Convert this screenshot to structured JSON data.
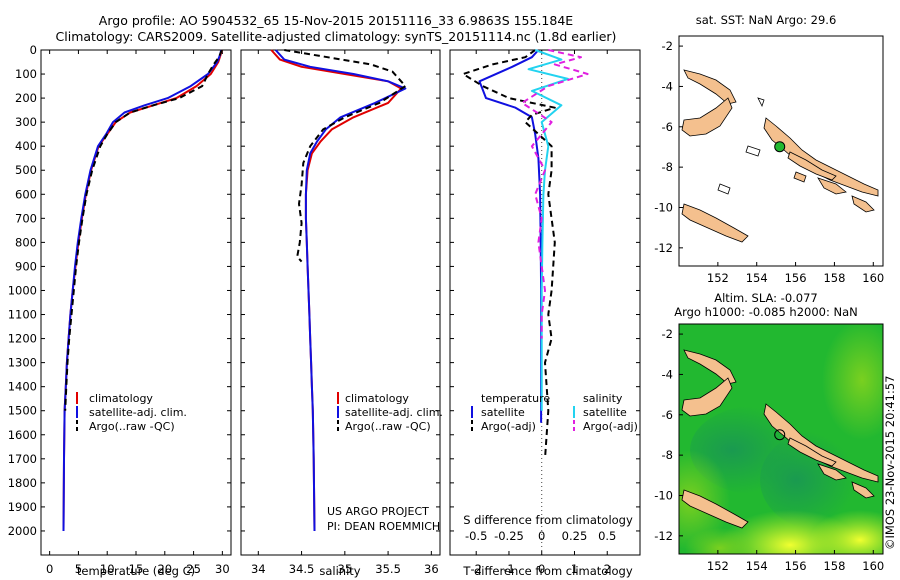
{
  "header": {
    "title_line1": "Argo profile: AO 5904532_65 15-Nov-2015 20151116_33 6.9863S 155.184E",
    "title_line2": "Climatology: CARS2009. Satellite-adjusted climatology: synTS_20151114.nc (1.8d earlier)"
  },
  "colors": {
    "climatology": "#e00000",
    "satellite": "#1010e0",
    "argo": "#000000",
    "salinity_satellite": "#22d3f0",
    "salinity_argo": "#e020e0",
    "land": "#f4c08e",
    "ocean_field": "#22b830"
  },
  "chart_data": [
    {
      "id": "temperature",
      "type": "line",
      "xlabel": "temperature (deg C)",
      "ylabel": "",
      "xlim": [
        -1.5,
        31.5
      ],
      "ylim": [
        2100,
        0
      ],
      "xticks": [
        0,
        5,
        10,
        15,
        20,
        25,
        30
      ],
      "yticks": [
        0,
        100,
        200,
        300,
        400,
        500,
        600,
        700,
        800,
        900,
        1000,
        1100,
        1200,
        1300,
        1400,
        1500,
        1600,
        1700,
        1800,
        1900,
        2000
      ],
      "legend": [
        "climatology",
        "satellite-adj. clim.",
        "Argo(..raw -QC)"
      ],
      "series": [
        {
          "name": "climatology",
          "color": "#e00000",
          "dashed": false,
          "x": [
            29.9,
            29.7,
            29.3,
            28.0,
            25.5,
            22.0,
            18.0,
            14.0,
            11.5,
            10.0,
            8.5,
            7.2,
            6.3,
            5.6,
            5.0,
            4.5,
            4.0,
            3.6,
            3.3,
            3.0,
            2.8,
            2.6,
            2.5,
            2.4
          ],
          "y": [
            0,
            20,
            50,
            100,
            150,
            200,
            230,
            260,
            300,
            350,
            400,
            500,
            600,
            700,
            800,
            900,
            1000,
            1100,
            1200,
            1300,
            1400,
            1500,
            1700,
            2000
          ]
        },
        {
          "name": "satellite-adj. clim.",
          "color": "#1010e0",
          "dashed": false,
          "x": [
            29.8,
            29.6,
            29.1,
            27.5,
            24.5,
            20.5,
            16.5,
            13.0,
            11.0,
            9.8,
            8.4,
            7.1,
            6.2,
            5.5,
            4.9,
            4.4,
            4.0,
            3.6,
            3.3,
            3.0,
            2.8,
            2.6,
            2.5,
            2.4
          ],
          "y": [
            0,
            20,
            50,
            100,
            150,
            200,
            230,
            260,
            300,
            350,
            400,
            500,
            600,
            700,
            800,
            900,
            1000,
            1100,
            1200,
            1300,
            1400,
            1500,
            1700,
            2000
          ]
        },
        {
          "name": "Argo(..raw -QC)",
          "color": "#000000",
          "dashed": true,
          "x": [
            29.9,
            29.4,
            28.5,
            27.5,
            26.5,
            22.5,
            18.0,
            14.0,
            11.5,
            10.0,
            8.8,
            7.4,
            6.4,
            5.7,
            5.1,
            4.6,
            4.2,
            3.8,
            3.4,
            3.1,
            2.9,
            2.7
          ],
          "y": [
            0,
            30,
            60,
            100,
            150,
            200,
            230,
            260,
            300,
            350,
            400,
            500,
            600,
            700,
            800,
            900,
            1000,
            1100,
            1200,
            1300,
            1400,
            1500
          ]
        }
      ]
    },
    {
      "id": "salinity",
      "type": "line",
      "xlabel": "salinity",
      "ylabel": "",
      "xlim": [
        33.8,
        36.1
      ],
      "ylim": [
        2100,
        0
      ],
      "xticks": [
        34,
        34.5,
        35,
        35.5,
        36
      ],
      "yticks": [
        0,
        100,
        200,
        300,
        400,
        500,
        600,
        700,
        800,
        900,
        1000,
        1100,
        1200,
        1300,
        1400,
        1500,
        1600,
        1700,
        1800,
        1900,
        2000
      ],
      "legend": [
        "climatology",
        "satellite-adj. clim.",
        "Argo(..raw -QC)"
      ],
      "annotation": [
        "US ARGO PROJECT",
        "PI: DEAN ROEMMICH"
      ],
      "series": [
        {
          "name": "climatology",
          "color": "#e00000",
          "dashed": false,
          "x": [
            34.15,
            34.25,
            34.5,
            35.0,
            35.5,
            35.65,
            35.5,
            35.1,
            34.85,
            34.72,
            34.62,
            34.57,
            34.55,
            34.55,
            34.56,
            34.57,
            34.58,
            34.59,
            34.6,
            34.61,
            34.62,
            34.63,
            34.64,
            34.65
          ],
          "y": [
            0,
            40,
            70,
            100,
            130,
            160,
            220,
            280,
            330,
            380,
            430,
            500,
            600,
            700,
            800,
            900,
            1000,
            1100,
            1200,
            1300,
            1400,
            1500,
            1700,
            2000
          ]
        },
        {
          "name": "satellite-adj. clim.",
          "color": "#1010e0",
          "dashed": false,
          "x": [
            34.2,
            34.3,
            34.6,
            35.1,
            35.5,
            35.7,
            35.35,
            34.95,
            34.78,
            34.68,
            34.6,
            34.56,
            34.55,
            34.55,
            34.56,
            34.57,
            34.58,
            34.59,
            34.6,
            34.61,
            34.62,
            34.63,
            34.64,
            34.65
          ],
          "y": [
            0,
            40,
            70,
            100,
            130,
            160,
            220,
            280,
            330,
            380,
            430,
            500,
            600,
            700,
            800,
            900,
            1000,
            1100,
            1200,
            1300,
            1400,
            1500,
            1700,
            2000
          ]
        },
        {
          "name": "Argo(..raw -QC)",
          "color": "#000000",
          "dashed": true,
          "x": [
            34.3,
            34.8,
            35.3,
            35.55,
            35.7,
            35.4,
            35.0,
            34.75,
            34.6,
            34.52,
            34.5,
            34.47,
            34.5,
            34.48,
            34.45,
            34.5
          ],
          "y": [
            0,
            30,
            60,
            90,
            150,
            220,
            280,
            330,
            400,
            470,
            560,
            640,
            720,
            800,
            860,
            880
          ]
        }
      ]
    },
    {
      "id": "differences",
      "type": "line",
      "xlabel": "T difference from climatology",
      "xlabel_top": "S difference from climatology",
      "ylabel": "",
      "xlim": [
        -2.8,
        3.0
      ],
      "ylim": [
        2100,
        0
      ],
      "xticks": [
        -2,
        -1,
        0,
        1,
        2
      ],
      "xticks_s": [
        "-0.5",
        "-0.25",
        "0",
        "0.25",
        "0.5"
      ],
      "xticks_s_pos": [
        -2,
        -1,
        0,
        1,
        2
      ],
      "yticks": [
        0,
        100,
        200,
        300,
        400,
        500,
        600,
        700,
        800,
        900,
        1000,
        1100,
        1200,
        1300,
        1400,
        1500,
        1600,
        1700,
        1800,
        1900,
        2000
      ],
      "legend_temperature_title": "temperature",
      "legend_salinity_title": "salinity",
      "legend": [
        "satellite",
        "Argo(-adj)",
        "satellite",
        "Argo(-adj)"
      ],
      "series": [
        {
          "name": "satellite",
          "group": "temperature",
          "color": "#1010e0",
          "dashed": false,
          "x": [
            -0.1,
            -0.3,
            -0.9,
            -1.9,
            -1.7,
            -0.8,
            -0.3,
            -0.2,
            -0.1,
            -0.05,
            -0.03,
            -0.02,
            -0.02,
            -0.02,
            -0.02,
            -0.02
          ],
          "y": [
            0,
            30,
            70,
            130,
            200,
            240,
            280,
            350,
            450,
            600,
            800,
            1000,
            1200,
            1400,
            1500,
            1550
          ]
        },
        {
          "name": "Argo(-adj)",
          "group": "temperature",
          "color": "#000000",
          "dashed": true,
          "x": [
            -0.2,
            -0.5,
            -1.5,
            -2.4,
            -1.8,
            -1.0,
            0.4,
            -0.3,
            -0.5,
            0.3,
            0.3,
            0.2,
            0.4,
            0.3,
            0.2,
            0.3,
            0.1,
            0.2,
            0.1
          ],
          "y": [
            0,
            30,
            60,
            100,
            150,
            200,
            240,
            270,
            300,
            400,
            500,
            600,
            800,
            1000,
            1100,
            1200,
            1300,
            1500,
            1700
          ]
        },
        {
          "name": "satellite",
          "group": "salinity",
          "color": "#22d3f0",
          "dashed": false,
          "x": [
            -0.2,
            0.6,
            -0.4,
            0.8,
            -0.3,
            0.6,
            0.0,
            0.2,
            0.1,
            0.05,
            0.02,
            0.0,
            0.0,
            0.0,
            0.0
          ],
          "y": [
            0,
            40,
            80,
            120,
            170,
            230,
            300,
            400,
            500,
            600,
            800,
            1000,
            1200,
            1400,
            1500
          ]
        },
        {
          "name": "Argo(-adj)",
          "group": "salinity",
          "color": "#e020e0",
          "dashed": true,
          "x": [
            0.2,
            1.2,
            0.4,
            1.4,
            0.2,
            -0.6,
            0.3,
            -0.3,
            0.1,
            -0.2,
            0.0,
            -0.1,
            0.0,
            0.1,
            0.0,
            0.0
          ],
          "y": [
            0,
            30,
            60,
            100,
            150,
            220,
            300,
            400,
            500,
            600,
            700,
            800,
            900,
            1000,
            1100,
            1200
          ]
        }
      ]
    },
    {
      "id": "sst_map",
      "type": "map",
      "title": "sat. SST: NaN Argo: 29.6",
      "xlim": [
        150,
        160.5
      ],
      "ylim": [
        -12.9,
        -1.5
      ],
      "xticks": [
        152,
        154,
        156,
        158,
        160
      ],
      "yticks": [
        -2,
        -4,
        -6,
        -8,
        -10,
        -12
      ],
      "marker": {
        "lon": 155.184,
        "lat": -6.9863
      }
    },
    {
      "id": "sla_map",
      "type": "map",
      "title_line1": "Altim. SLA: -0.077",
      "title_line2": "Argo h1000: -0.085 h2000: NaN",
      "xlim": [
        150,
        160.5
      ],
      "ylim": [
        -12.9,
        -1.5
      ],
      "xticks": [
        152,
        154,
        156,
        158,
        160
      ],
      "yticks": [
        -2,
        -4,
        -6,
        -8,
        -10,
        -12
      ],
      "marker": {
        "lon": 155.184,
        "lat": -6.9863
      }
    }
  ],
  "credit": "©IMOS 23-Nov-2015 20:41:57"
}
